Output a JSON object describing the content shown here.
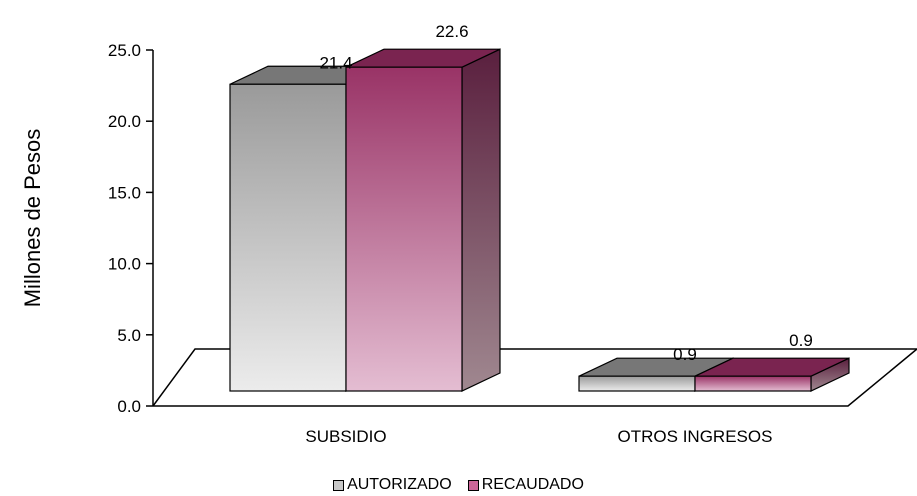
{
  "chart_data": {
    "type": "bar",
    "style": "3d-clustered-column",
    "ylabel": "Millones de Pesos",
    "xlabel": "",
    "title": "",
    "ylim": [
      0,
      25
    ],
    "yticks": [
      "0.0",
      "5.0",
      "10.0",
      "15.0",
      "20.0",
      "25.0"
    ],
    "categories": [
      "SUBSIDIO",
      "OTROS INGRESOS"
    ],
    "series": [
      {
        "name": "AUTORIZADO",
        "values": [
          21.4,
          0.9
        ],
        "labels": [
          "21.4",
          "0.9"
        ],
        "color": "#9a9a9a"
      },
      {
        "name": "RECAUDADO",
        "values": [
          22.6,
          0.9
        ],
        "labels": [
          "22.6",
          "0.9"
        ],
        "color": "#993366"
      }
    ],
    "legend_position": "bottom"
  }
}
